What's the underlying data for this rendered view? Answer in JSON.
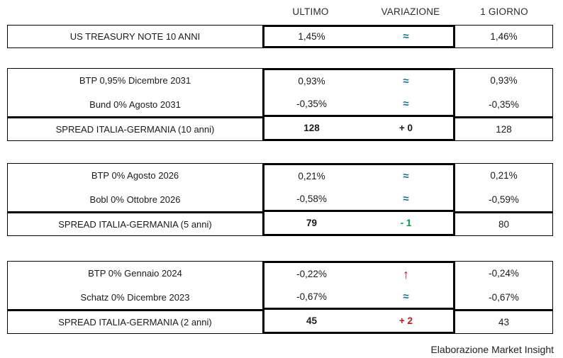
{
  "header": {
    "ultimo": "ULTIMO",
    "variazione": "VARIAZIONE",
    "giorno": "1 GIORNO"
  },
  "colors": {
    "approx_teal": "#186f8e",
    "change_red": "#c31622",
    "change_green": "#00a14b",
    "text": "#1a1a1a",
    "border": "#000000"
  },
  "blocks": [
    {
      "rows": [
        {
          "label": "US TREASURY NOTE 10 ANNI",
          "ultimo": "1,45%",
          "variazione": "≈",
          "giorno": "1,46%"
        }
      ]
    },
    {
      "rows": [
        {
          "label": "BTP 0,95% Dicembre 2031",
          "ultimo": "0,93%",
          "variazione": "≈",
          "giorno": "0,93%"
        },
        {
          "label": "Bund 0% Agosto 2031",
          "ultimo": "-0,35%",
          "variazione": "≈",
          "giorno": "-0,35%"
        }
      ],
      "spread": {
        "label": "SPREAD ITALIA-GERMANIA (10 anni)",
        "ultimo": "128",
        "variazione": "+ 0",
        "giorno": "128"
      }
    },
    {
      "rows": [
        {
          "label": "BTP 0% Agosto 2026",
          "ultimo": "0,21%",
          "variazione": "≈",
          "giorno": "0,21%"
        },
        {
          "label": "Bobl 0% Ottobre 2026",
          "ultimo": "-0,58%",
          "variazione": "≈",
          "giorno": "-0,59%"
        }
      ],
      "spread": {
        "label": "SPREAD ITALIA-GERMANIA (5 anni)",
        "ultimo": "79",
        "variazione": "- 1",
        "giorno": "80"
      }
    },
    {
      "rows": [
        {
          "label": "BTP 0% Gennaio 2024",
          "ultimo": "-0,22%",
          "variazione": "↑",
          "giorno": "-0,24%"
        },
        {
          "label": "Schatz 0% Dicembre 2023",
          "ultimo": "-0,67%",
          "variazione": "≈",
          "giorno": "-0,67%"
        }
      ],
      "spread": {
        "label": "SPREAD ITALIA-GERMANIA (2 anni)",
        "ultimo": "45",
        "variazione": "+ 2",
        "giorno": "43"
      }
    }
  ],
  "footer": "Elaborazione Market Insight"
}
